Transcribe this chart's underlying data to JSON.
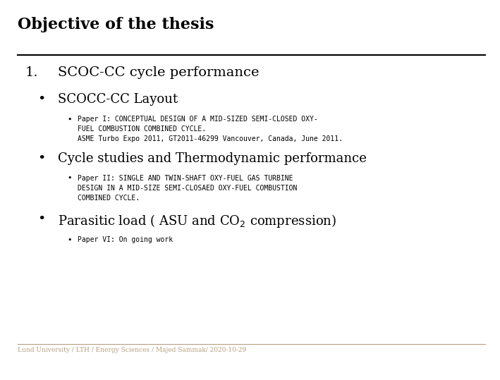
{
  "title": "Objective of the thesis",
  "background_color": "#ffffff",
  "title_fontsize": 16,
  "footer_text": "Lund University / LTH / Energy Sciences / Majed Sammak/ 2020-10-29",
  "footer_color": "#b8a080",
  "heading1_text": "SCOC-CC cycle performance",
  "heading1_num": "1.",
  "heading1_fontsize": 14,
  "bullet2a_text": "SCOCC-CC Layout",
  "bullet2a_fontsize": 13,
  "paper1_text": "Paper I: CONCEPTUAL DESIGN OF A MID-SIZED SEMI-CLOSED OXY-\nFUEL COMBUSTION COMBINED CYCLE.\nASME Turbo Expo 2011, GT2011-46299 Vancouver, Canada, June 2011.",
  "paper1_fontsize": 7,
  "bullet2b_text": "Cycle studies and Thermodynamic performance",
  "bullet2b_fontsize": 13,
  "paper2_text": "Paper II: SINGLE AND TWIN-SHAFT OXY-FUEL GAS TURBINE\nDESIGN IN A MID-SIZE SEMI-CLOSAED OXY-FUEL COMBUSTION\nCOMBINED CYCLE.",
  "paper2_fontsize": 7,
  "bullet2c_pre": "Parasitic load ( ASU and CO",
  "bullet2c_sub": "2",
  "bullet2c_post": " compression)",
  "bullet2c_fontsize": 13,
  "paper6_text": "Paper VI: On going work",
  "paper6_fontsize": 7
}
